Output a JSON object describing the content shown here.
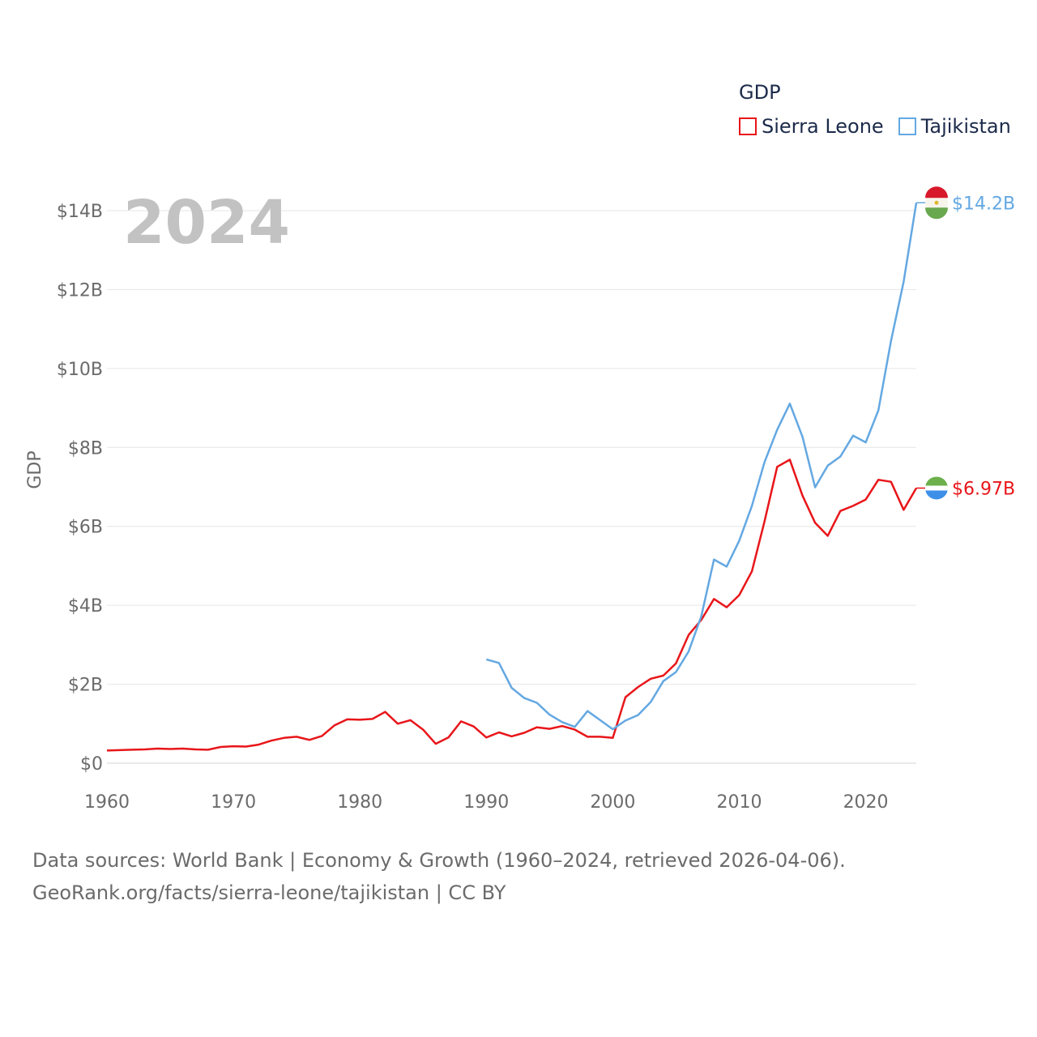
{
  "legend": {
    "title": "GDP",
    "items": [
      {
        "label": "Sierra Leone",
        "color": "#e8161a"
      },
      {
        "label": "Tajikistan",
        "color": "#64a8e2"
      }
    ]
  },
  "year_label": "2024",
  "footer": {
    "line1": "Data sources: World Bank | Economy & Growth (1960–2024, retrieved 2026-04-06).",
    "line2": "GeoRank.org/facts/sierra-leone/tajikistan | CC BY"
  },
  "chart_data": {
    "type": "line",
    "title": "",
    "xlabel": "",
    "ylabel": "GDP",
    "xlim": [
      1960,
      2024
    ],
    "ylim": [
      0,
      14
    ],
    "x_ticks": [
      1960,
      1970,
      1980,
      1990,
      2000,
      2010,
      2020
    ],
    "y_ticks": [
      0,
      2,
      4,
      6,
      8,
      10,
      12,
      14
    ],
    "y_tick_labels": [
      "$0",
      "$2B",
      "$4B",
      "$6B",
      "$8B",
      "$10B",
      "$12B",
      "$14B"
    ],
    "grid": true,
    "series": [
      {
        "name": "Sierra Leone",
        "color": "#e8161a",
        "end_label": "$6.97B",
        "points": [
          [
            1960,
            0.32
          ],
          [
            1961,
            0.33
          ],
          [
            1962,
            0.34
          ],
          [
            1963,
            0.35
          ],
          [
            1964,
            0.37
          ],
          [
            1965,
            0.36
          ],
          [
            1966,
            0.37
          ],
          [
            1967,
            0.35
          ],
          [
            1968,
            0.34
          ],
          [
            1969,
            0.41
          ],
          [
            1970,
            0.43
          ],
          [
            1971,
            0.42
          ],
          [
            1972,
            0.47
          ],
          [
            1973,
            0.57
          ],
          [
            1974,
            0.64
          ],
          [
            1975,
            0.67
          ],
          [
            1976,
            0.59
          ],
          [
            1977,
            0.69
          ],
          [
            1978,
            0.96
          ],
          [
            1979,
            1.11
          ],
          [
            1980,
            1.1
          ],
          [
            1981,
            1.12
          ],
          [
            1982,
            1.3
          ],
          [
            1983,
            1.0
          ],
          [
            1984,
            1.09
          ],
          [
            1985,
            0.85
          ],
          [
            1986,
            0.49
          ],
          [
            1987,
            0.65
          ],
          [
            1988,
            1.06
          ],
          [
            1989,
            0.93
          ],
          [
            1990,
            0.65
          ],
          [
            1991,
            0.78
          ],
          [
            1992,
            0.68
          ],
          [
            1993,
            0.77
          ],
          [
            1994,
            0.91
          ],
          [
            1995,
            0.87
          ],
          [
            1996,
            0.94
          ],
          [
            1997,
            0.85
          ],
          [
            1998,
            0.67
          ],
          [
            1999,
            0.67
          ],
          [
            2000,
            0.64
          ],
          [
            2001,
            1.67
          ],
          [
            2002,
            1.93
          ],
          [
            2003,
            2.14
          ],
          [
            2004,
            2.22
          ],
          [
            2005,
            2.53
          ],
          [
            2006,
            3.25
          ],
          [
            2007,
            3.63
          ],
          [
            2008,
            4.16
          ],
          [
            2009,
            3.95
          ],
          [
            2010,
            4.26
          ],
          [
            2011,
            4.86
          ],
          [
            2012,
            6.13
          ],
          [
            2013,
            7.51
          ],
          [
            2014,
            7.69
          ],
          [
            2015,
            6.78
          ],
          [
            2016,
            6.09
          ],
          [
            2017,
            5.76
          ],
          [
            2018,
            6.39
          ],
          [
            2019,
            6.52
          ],
          [
            2020,
            6.68
          ],
          [
            2021,
            7.18
          ],
          [
            2022,
            7.13
          ],
          [
            2023,
            6.42
          ],
          [
            2024,
            6.97
          ]
        ]
      },
      {
        "name": "Tajikistan",
        "color": "#64a8e2",
        "end_label": "$14.2B",
        "points": [
          [
            1990,
            2.63
          ],
          [
            1991,
            2.54
          ],
          [
            1992,
            1.91
          ],
          [
            1993,
            1.65
          ],
          [
            1994,
            1.53
          ],
          [
            1995,
            1.23
          ],
          [
            1996,
            1.04
          ],
          [
            1997,
            0.92
          ],
          [
            1998,
            1.32
          ],
          [
            1999,
            1.09
          ],
          [
            2000,
            0.86
          ],
          [
            2001,
            1.08
          ],
          [
            2002,
            1.22
          ],
          [
            2003,
            1.55
          ],
          [
            2004,
            2.08
          ],
          [
            2005,
            2.31
          ],
          [
            2006,
            2.83
          ],
          [
            2007,
            3.72
          ],
          [
            2008,
            5.16
          ],
          [
            2009,
            4.98
          ],
          [
            2010,
            5.64
          ],
          [
            2011,
            6.52
          ],
          [
            2012,
            7.63
          ],
          [
            2013,
            8.45
          ],
          [
            2014,
            9.11
          ],
          [
            2015,
            8.27
          ],
          [
            2016,
            6.99
          ],
          [
            2017,
            7.54
          ],
          [
            2018,
            7.77
          ],
          [
            2019,
            8.3
          ],
          [
            2020,
            8.13
          ],
          [
            2021,
            8.94
          ],
          [
            2022,
            10.7
          ],
          [
            2023,
            12.2
          ],
          [
            2024,
            14.2
          ]
        ]
      }
    ]
  }
}
